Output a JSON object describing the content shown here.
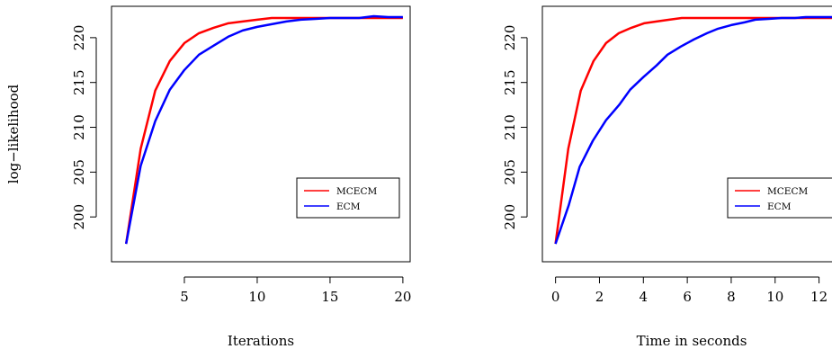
{
  "chart_data": [
    {
      "type": "line",
      "xlabel": "Iterations",
      "ylabel": "log−likelihood",
      "xlim": [
        0,
        20.5
      ],
      "ylim": [
        195,
        223.5
      ],
      "xticks": [
        5,
        10,
        15,
        20
      ],
      "yticks": [
        200,
        205,
        210,
        215,
        220
      ],
      "legend_position": "right",
      "series": [
        {
          "name": "MCECM",
          "color": "#ff0000",
          "x": [
            1,
            2,
            3,
            4,
            5,
            6,
            7,
            8,
            9,
            10,
            11,
            12,
            13,
            14,
            15,
            16,
            17,
            18,
            19,
            20
          ],
          "y": [
            197.0,
            207.6,
            214.1,
            217.4,
            219.4,
            220.5,
            221.1,
            221.6,
            221.8,
            222.0,
            222.2,
            222.2,
            222.2,
            222.2,
            222.2,
            222.2,
            222.2,
            222.2,
            222.2,
            222.2
          ]
        },
        {
          "name": "ECM",
          "color": "#0000ff",
          "x": [
            1,
            2,
            3,
            4,
            5,
            6,
            7,
            8,
            9,
            10,
            11,
            12,
            13,
            14,
            15,
            16,
            17,
            18,
            19,
            20
          ],
          "y": [
            197.0,
            205.7,
            210.7,
            214.2,
            216.4,
            218.1,
            219.1,
            220.1,
            220.8,
            221.2,
            221.5,
            221.8,
            222.0,
            222.1,
            222.2,
            222.2,
            222.2,
            222.4,
            222.3,
            222.3
          ]
        }
      ]
    },
    {
      "type": "line",
      "xlabel": "Time in seconds",
      "ylabel": "",
      "xlim": [
        -0.6,
        13.0
      ],
      "ylim": [
        195,
        223.5
      ],
      "xticks": [
        0,
        2,
        4,
        6,
        8,
        10,
        12
      ],
      "yticks": [
        200,
        205,
        210,
        215,
        220
      ],
      "legend_position": "right",
      "series": [
        {
          "name": "MCECM",
          "color": "#ff0000",
          "x": [
            0,
            0.58,
            1.15,
            1.73,
            2.3,
            2.88,
            3.45,
            4.03,
            4.6,
            5.18,
            5.75,
            6.33,
            6.9,
            7.48,
            8.05,
            8.63,
            9.2,
            9.78,
            10.35,
            10.93,
            11.5,
            12.08,
            12.65
          ],
          "y": [
            197.0,
            207.6,
            214.1,
            217.4,
            219.4,
            220.5,
            221.1,
            221.6,
            221.8,
            222.0,
            222.2,
            222.2,
            222.2,
            222.2,
            222.2,
            222.2,
            222.2,
            222.2,
            222.2,
            222.2,
            222.2,
            222.2,
            222.2
          ]
        },
        {
          "name": "ECM",
          "color": "#0000ff",
          "x": [
            0,
            0.6,
            1.1,
            1.7,
            2.3,
            2.9,
            3.4,
            4.0,
            4.6,
            5.1,
            5.7,
            6.3,
            6.9,
            7.4,
            8.0,
            8.6,
            9.1,
            9.7,
            10.3,
            10.9,
            11.4,
            12.0,
            12.6
          ],
          "y": [
            197.0,
            201.3,
            205.6,
            208.5,
            210.8,
            212.5,
            214.2,
            215.6,
            216.9,
            218.1,
            219.0,
            219.8,
            220.5,
            221.0,
            221.4,
            221.7,
            222.0,
            222.1,
            222.2,
            222.2,
            222.3,
            222.3,
            222.3
          ]
        }
      ]
    }
  ]
}
